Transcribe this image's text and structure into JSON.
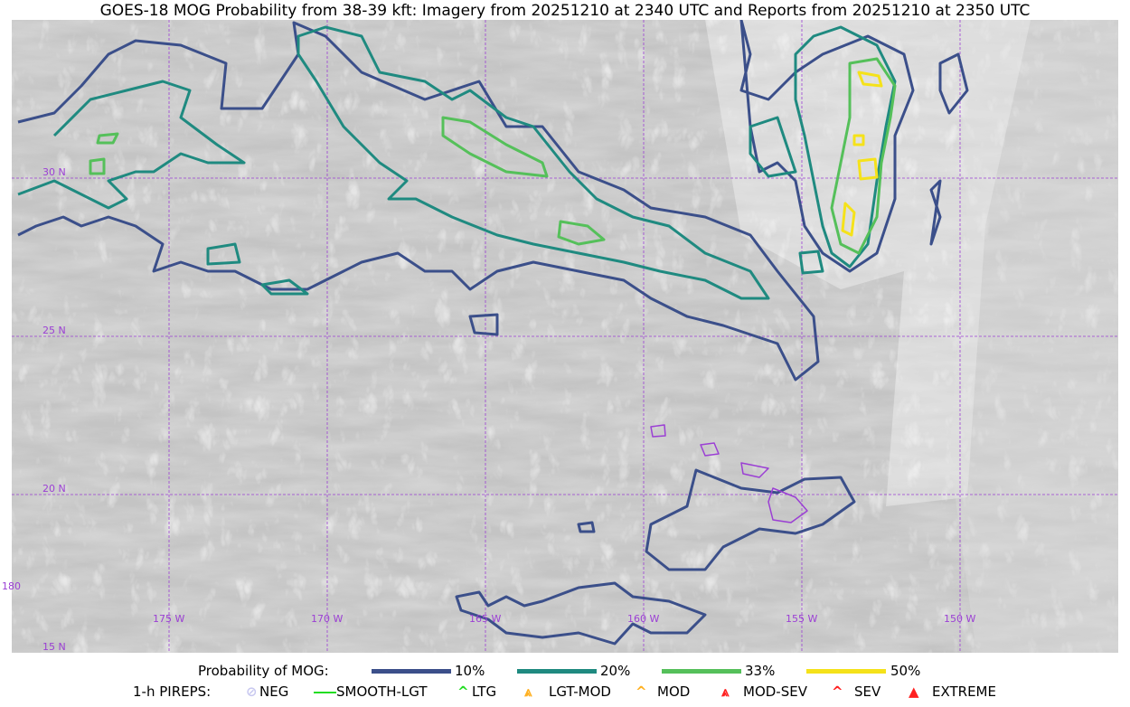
{
  "title": "GOES-18 MOG Probability from 38-39 kft: Imagery from 20251210 at 2340 UTC and Reports from 20251210 at 2350 UTC",
  "map": {
    "lat_labels": [
      "30 N",
      "25 N",
      "20 N",
      "15 N"
    ],
    "lon_labels": [
      "180",
      "175 W",
      "170 W",
      "165 W",
      "160 W",
      "155 W",
      "150 W"
    ],
    "gridline_color": "#9b3fd4",
    "contour_colors": {
      "p10": "#3b4f8a",
      "p20": "#1f8a80",
      "p33": "#55c05a",
      "p50": "#f5e21a",
      "island": "#9b3fd4"
    }
  },
  "legend": {
    "prob_title": "Probability of MOG:",
    "prob_items": [
      {
        "label": "10%",
        "color": "#3b4f8a"
      },
      {
        "label": "20%",
        "color": "#1f8a80"
      },
      {
        "label": "33%",
        "color": "#55c05a"
      },
      {
        "label": "50%",
        "color": "#f5e21a"
      }
    ],
    "pirep_title": "1-h PIREPS:",
    "pirep_items": [
      {
        "label": "NEG",
        "color": "#c8c8f0",
        "icon": "neg-icon"
      },
      {
        "label": "SMOOTH-LGT",
        "color": "#22dd22",
        "icon": "line-icon"
      },
      {
        "label": "LTG",
        "color": "#22dd22",
        "icon": "caret-icon"
      },
      {
        "label": "LGT-MOD",
        "color": "#ffb020",
        "icon": "caret-bar-icon"
      },
      {
        "label": "MOD",
        "color": "#ffb020",
        "icon": "caret-icon"
      },
      {
        "label": "MOD-SEV",
        "color": "#ff2020",
        "icon": "double-caret-bar-icon"
      },
      {
        "label": "SEV",
        "color": "#ff2020",
        "icon": "double-caret-icon"
      },
      {
        "label": "EXTREME",
        "color": "#ff2020",
        "icon": "filled-triangle-icon"
      }
    ]
  }
}
